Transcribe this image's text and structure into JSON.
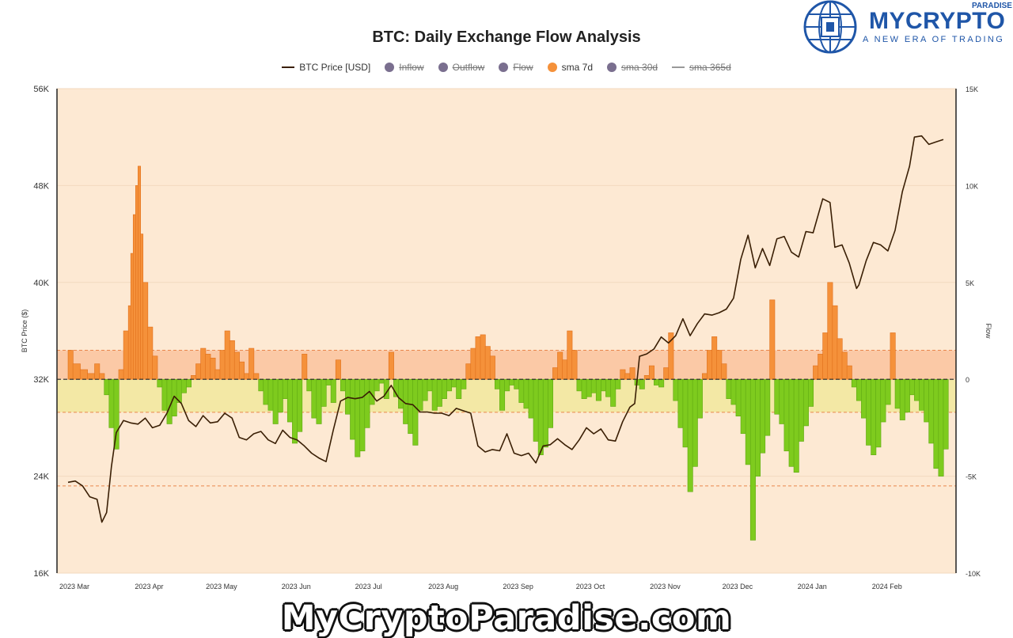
{
  "brand": {
    "name": "MYCRYPTO",
    "name_small": "PARADISE",
    "tagline": "A NEW ERA OF TRADING",
    "watermark": "MyCryptoParadise.com",
    "color": "#1f56a8"
  },
  "chart_data": {
    "type": "bar",
    "title": "BTC: Daily Exchange Flow Analysis",
    "ylabel_left": "BTC Price ($)",
    "ylabel_right": "Flow",
    "legend_placement": "top-center",
    "legend": [
      {
        "label": "BTC Price [USD]",
        "style": "line",
        "color": "#3a1f05",
        "visible": true
      },
      {
        "label": "Inflow",
        "style": "dot",
        "color": "#7a6f8f",
        "visible": false
      },
      {
        "label": "Outflow",
        "style": "dot",
        "color": "#7a6f8f",
        "visible": false
      },
      {
        "label": "Flow",
        "style": "dot",
        "color": "#7a6f8f",
        "visible": false
      },
      {
        "label": "sma 7d",
        "style": "dot",
        "color": "#f5913a",
        "visible": true
      },
      {
        "label": "sma 30d",
        "style": "dot",
        "color": "#7a6f8f",
        "visible": false
      },
      {
        "label": "sma 365d",
        "style": "line",
        "color": "#999999",
        "visible": false
      }
    ],
    "x_axis": {
      "start": "2023-03-01",
      "end": "2024-02-28",
      "tick_labels": [
        "2023 Mar",
        "2023 Apr",
        "2023 May",
        "2023 Jun",
        "2023 Jul",
        "2023 Aug",
        "2023 Sep",
        "2023 Oct",
        "2023 Nov",
        "2023 Dec",
        "2024 Jan",
        "2024 Feb"
      ]
    },
    "y_left": {
      "min": 16000,
      "max": 56000,
      "tick_labels": [
        "16K",
        "24K",
        "32K",
        "40K",
        "48K",
        "56K"
      ]
    },
    "y_right": {
      "min": -10000,
      "max": 15000,
      "tick_labels": [
        "-10K",
        "-5K",
        "0",
        "5K",
        "10K",
        "15K"
      ]
    },
    "bands": {
      "upper": 1500,
      "lower": -1700,
      "lower2": -5500
    },
    "colors": {
      "positive": "#f5913a",
      "negative": "#7ecb1e",
      "price": "#3a1f05",
      "background": "#fde9d3"
    },
    "flow_sma7d": [
      [
        "2023-03-01",
        1500
      ],
      [
        "2023-03-03",
        800
      ],
      [
        "2023-03-06",
        500
      ],
      [
        "2023-03-09",
        300
      ],
      [
        "2023-03-12",
        800
      ],
      [
        "2023-03-14",
        300
      ],
      [
        "2023-03-16",
        -800
      ],
      [
        "2023-03-18",
        -2500
      ],
      [
        "2023-03-20",
        -3600
      ],
      [
        "2023-03-22",
        500
      ],
      [
        "2023-03-24",
        2500
      ],
      [
        "2023-03-26",
        3800
      ],
      [
        "2023-03-27",
        6500
      ],
      [
        "2023-03-28",
        8500
      ],
      [
        "2023-03-29",
        10000
      ],
      [
        "2023-03-30",
        11000
      ],
      [
        "2023-03-31",
        7500
      ],
      [
        "2023-04-01",
        5000
      ],
      [
        "2023-04-03",
        2700
      ],
      [
        "2023-04-05",
        1200
      ],
      [
        "2023-04-07",
        -400
      ],
      [
        "2023-04-09",
        -1600
      ],
      [
        "2023-04-11",
        -2300
      ],
      [
        "2023-04-13",
        -1900
      ],
      [
        "2023-04-15",
        -1200
      ],
      [
        "2023-04-17",
        -700
      ],
      [
        "2023-04-19",
        -400
      ],
      [
        "2023-04-21",
        200
      ],
      [
        "2023-04-23",
        800
      ],
      [
        "2023-04-25",
        1600
      ],
      [
        "2023-04-27",
        1300
      ],
      [
        "2023-04-29",
        1100
      ],
      [
        "2023-05-01",
        500
      ],
      [
        "2023-05-03",
        1500
      ],
      [
        "2023-05-05",
        2500
      ],
      [
        "2023-05-07",
        2000
      ],
      [
        "2023-05-09",
        1400
      ],
      [
        "2023-05-11",
        900
      ],
      [
        "2023-05-13",
        300
      ],
      [
        "2023-05-15",
        1600
      ],
      [
        "2023-05-17",
        300
      ],
      [
        "2023-05-19",
        -600
      ],
      [
        "2023-05-21",
        -1300
      ],
      [
        "2023-05-23",
        -1600
      ],
      [
        "2023-05-25",
        -2300
      ],
      [
        "2023-05-27",
        -1700
      ],
      [
        "2023-05-29",
        -1000
      ],
      [
        "2023-05-31",
        -2200
      ],
      [
        "2023-06-02",
        -3300
      ],
      [
        "2023-06-04",
        -2700
      ],
      [
        "2023-06-06",
        1300
      ],
      [
        "2023-06-08",
        -600
      ],
      [
        "2023-06-10",
        -2000
      ],
      [
        "2023-06-12",
        -2300
      ],
      [
        "2023-06-14",
        -1400
      ],
      [
        "2023-06-16",
        -300
      ],
      [
        "2023-06-18",
        -1200
      ],
      [
        "2023-06-20",
        1000
      ],
      [
        "2023-06-22",
        -600
      ],
      [
        "2023-06-24",
        -1800
      ],
      [
        "2023-06-26",
        -3100
      ],
      [
        "2023-06-28",
        -4000
      ],
      [
        "2023-06-30",
        -3700
      ],
      [
        "2023-07-02",
        -2500
      ],
      [
        "2023-07-04",
        -1300
      ],
      [
        "2023-07-06",
        -600
      ],
      [
        "2023-07-08",
        -200
      ],
      [
        "2023-07-10",
        -1000
      ],
      [
        "2023-07-12",
        1400
      ],
      [
        "2023-07-14",
        -900
      ],
      [
        "2023-07-16",
        -1500
      ],
      [
        "2023-07-18",
        -2300
      ],
      [
        "2023-07-20",
        -2800
      ],
      [
        "2023-07-22",
        -3400
      ],
      [
        "2023-07-24",
        -1600
      ],
      [
        "2023-07-26",
        -1100
      ],
      [
        "2023-07-28",
        -600
      ],
      [
        "2023-07-30",
        -1600
      ],
      [
        "2023-08-01",
        -1400
      ],
      [
        "2023-08-03",
        -1000
      ],
      [
        "2023-08-05",
        -600
      ],
      [
        "2023-08-07",
        -400
      ],
      [
        "2023-08-09",
        -1000
      ],
      [
        "2023-08-11",
        -500
      ],
      [
        "2023-08-13",
        800
      ],
      [
        "2023-08-15",
        1600
      ],
      [
        "2023-08-17",
        2200
      ],
      [
        "2023-08-19",
        2300
      ],
      [
        "2023-08-21",
        1700
      ],
      [
        "2023-08-23",
        1200
      ],
      [
        "2023-08-25",
        -500
      ],
      [
        "2023-08-27",
        -1600
      ],
      [
        "2023-08-29",
        -600
      ],
      [
        "2023-08-31",
        -300
      ],
      [
        "2023-09-02",
        -500
      ],
      [
        "2023-09-04",
        -1200
      ],
      [
        "2023-09-06",
        -1500
      ],
      [
        "2023-09-08",
        -2000
      ],
      [
        "2023-09-10",
        -3200
      ],
      [
        "2023-09-12",
        -3900
      ],
      [
        "2023-09-14",
        -3500
      ],
      [
        "2023-09-16",
        -2500
      ],
      [
        "2023-09-18",
        600
      ],
      [
        "2023-09-20",
        1400
      ],
      [
        "2023-09-22",
        1000
      ],
      [
        "2023-09-24",
        2500
      ],
      [
        "2023-09-26",
        1500
      ],
      [
        "2023-09-28",
        -600
      ],
      [
        "2023-09-30",
        -1000
      ],
      [
        "2023-10-02",
        -900
      ],
      [
        "2023-10-04",
        -700
      ],
      [
        "2023-10-06",
        -1100
      ],
      [
        "2023-10-08",
        -600
      ],
      [
        "2023-10-10",
        -900
      ],
      [
        "2023-10-12",
        -1400
      ],
      [
        "2023-10-14",
        -500
      ],
      [
        "2023-10-16",
        500
      ],
      [
        "2023-10-18",
        300
      ],
      [
        "2023-10-20",
        600
      ],
      [
        "2023-10-22",
        -300
      ],
      [
        "2023-10-24",
        -500
      ],
      [
        "2023-10-26",
        200
      ],
      [
        "2023-10-28",
        700
      ],
      [
        "2023-10-30",
        -300
      ],
      [
        "2023-11-01",
        -400
      ],
      [
        "2023-11-03",
        600
      ],
      [
        "2023-11-05",
        2400
      ],
      [
        "2023-11-07",
        -1100
      ],
      [
        "2023-11-09",
        -2500
      ],
      [
        "2023-11-11",
        -3500
      ],
      [
        "2023-11-13",
        -5800
      ],
      [
        "2023-11-15",
        -4500
      ],
      [
        "2023-11-17",
        -2000
      ],
      [
        "2023-11-19",
        300
      ],
      [
        "2023-11-21",
        1500
      ],
      [
        "2023-11-23",
        2200
      ],
      [
        "2023-11-25",
        1500
      ],
      [
        "2023-11-27",
        800
      ],
      [
        "2023-11-29",
        -1000
      ],
      [
        "2023-12-01",
        -1300
      ],
      [
        "2023-12-03",
        -1900
      ],
      [
        "2023-12-05",
        -2800
      ],
      [
        "2023-12-07",
        -4400
      ],
      [
        "2023-12-09",
        -8300
      ],
      [
        "2023-12-11",
        -5000
      ],
      [
        "2023-12-13",
        -3800
      ],
      [
        "2023-12-15",
        -2900
      ],
      [
        "2023-12-17",
        4100
      ],
      [
        "2023-12-19",
        -1800
      ],
      [
        "2023-12-21",
        -2300
      ],
      [
        "2023-12-23",
        -3700
      ],
      [
        "2023-12-25",
        -4500
      ],
      [
        "2023-12-27",
        -4800
      ],
      [
        "2023-12-29",
        -3200
      ],
      [
        "2023-12-31",
        -2400
      ],
      [
        "2024-01-02",
        -1400
      ],
      [
        "2024-01-04",
        700
      ],
      [
        "2024-01-06",
        1300
      ],
      [
        "2024-01-08",
        2400
      ],
      [
        "2024-01-10",
        5000
      ],
      [
        "2024-01-12",
        3800
      ],
      [
        "2024-01-14",
        2100
      ],
      [
        "2024-01-16",
        1400
      ],
      [
        "2024-01-18",
        700
      ],
      [
        "2024-01-20",
        -400
      ],
      [
        "2024-01-22",
        -1100
      ],
      [
        "2024-01-24",
        -2000
      ],
      [
        "2024-01-26",
        -3400
      ],
      [
        "2024-01-28",
        -3900
      ],
      [
        "2024-01-30",
        -3500
      ],
      [
        "2024-02-01",
        -2200
      ],
      [
        "2024-02-03",
        -1300
      ],
      [
        "2024-02-05",
        2400
      ],
      [
        "2024-02-07",
        -1500
      ],
      [
        "2024-02-09",
        -2100
      ],
      [
        "2024-02-11",
        -1700
      ],
      [
        "2024-02-13",
        -800
      ],
      [
        "2024-02-15",
        -1100
      ],
      [
        "2024-02-17",
        -1600
      ],
      [
        "2024-02-19",
        -2200
      ],
      [
        "2024-02-21",
        -3300
      ],
      [
        "2024-02-23",
        -4600
      ],
      [
        "2024-02-25",
        -5000
      ],
      [
        "2024-02-27",
        -3600
      ]
    ],
    "price": [
      [
        "2023-03-01",
        23500
      ],
      [
        "2023-03-04",
        23600
      ],
      [
        "2023-03-07",
        23200
      ],
      [
        "2023-03-10",
        22300
      ],
      [
        "2023-03-13",
        22100
      ],
      [
        "2023-03-15",
        20200
      ],
      [
        "2023-03-17",
        21000
      ],
      [
        "2023-03-19",
        24800
      ],
      [
        "2023-03-21",
        27600
      ],
      [
        "2023-03-24",
        28600
      ],
      [
        "2023-03-27",
        28400
      ],
      [
        "2023-03-30",
        28300
      ],
      [
        "2023-04-02",
        28800
      ],
      [
        "2023-04-05",
        28000
      ],
      [
        "2023-04-08",
        28200
      ],
      [
        "2023-04-11",
        29200
      ],
      [
        "2023-04-14",
        30600
      ],
      [
        "2023-04-17",
        30000
      ],
      [
        "2023-04-20",
        28600
      ],
      [
        "2023-04-23",
        28100
      ],
      [
        "2023-04-26",
        29000
      ],
      [
        "2023-04-29",
        28400
      ],
      [
        "2023-05-02",
        28500
      ],
      [
        "2023-05-05",
        29200
      ],
      [
        "2023-05-08",
        28800
      ],
      [
        "2023-05-11",
        27200
      ],
      [
        "2023-05-14",
        27000
      ],
      [
        "2023-05-17",
        27500
      ],
      [
        "2023-05-20",
        27700
      ],
      [
        "2023-05-23",
        27000
      ],
      [
        "2023-05-26",
        26700
      ],
      [
        "2023-05-29",
        27800
      ],
      [
        "2023-06-01",
        27200
      ],
      [
        "2023-06-04",
        27000
      ],
      [
        "2023-06-07",
        26500
      ],
      [
        "2023-06-10",
        25900
      ],
      [
        "2023-06-13",
        25500
      ],
      [
        "2023-06-16",
        25200
      ],
      [
        "2023-06-19",
        27800
      ],
      [
        "2023-06-22",
        30200
      ],
      [
        "2023-06-25",
        30500
      ],
      [
        "2023-06-28",
        30400
      ],
      [
        "2023-07-01",
        30500
      ],
      [
        "2023-07-04",
        31000
      ],
      [
        "2023-07-07",
        30200
      ],
      [
        "2023-07-10",
        30600
      ],
      [
        "2023-07-13",
        31500
      ],
      [
        "2023-07-16",
        30500
      ],
      [
        "2023-07-19",
        30000
      ],
      [
        "2023-07-22",
        29900
      ],
      [
        "2023-07-25",
        29300
      ],
      [
        "2023-07-28",
        29300
      ],
      [
        "2023-07-31",
        29200
      ],
      [
        "2023-08-03",
        29200
      ],
      [
        "2023-08-06",
        29000
      ],
      [
        "2023-08-09",
        29600
      ],
      [
        "2023-08-12",
        29400
      ],
      [
        "2023-08-15",
        29200
      ],
      [
        "2023-08-18",
        26500
      ],
      [
        "2023-08-21",
        26000
      ],
      [
        "2023-08-24",
        26200
      ],
      [
        "2023-08-27",
        26100
      ],
      [
        "2023-08-30",
        27500
      ],
      [
        "2023-09-02",
        25900
      ],
      [
        "2023-09-05",
        25700
      ],
      [
        "2023-09-08",
        25900
      ],
      [
        "2023-09-11",
        25100
      ],
      [
        "2023-09-14",
        26500
      ],
      [
        "2023-09-17",
        26600
      ],
      [
        "2023-09-20",
        27100
      ],
      [
        "2023-09-23",
        26600
      ],
      [
        "2023-09-26",
        26200
      ],
      [
        "2023-09-29",
        27000
      ],
      [
        "2023-10-02",
        28000
      ],
      [
        "2023-10-05",
        27500
      ],
      [
        "2023-10-08",
        27900
      ],
      [
        "2023-10-11",
        27000
      ],
      [
        "2023-10-14",
        26900
      ],
      [
        "2023-10-17",
        28500
      ],
      [
        "2023-10-20",
        29700
      ],
      [
        "2023-10-22",
        30000
      ],
      [
        "2023-10-24",
        33900
      ],
      [
        "2023-10-27",
        34100
      ],
      [
        "2023-10-30",
        34500
      ],
      [
        "2023-11-02",
        35500
      ],
      [
        "2023-11-05",
        35000
      ],
      [
        "2023-11-08",
        35600
      ],
      [
        "2023-11-11",
        37000
      ],
      [
        "2023-11-14",
        35600
      ],
      [
        "2023-11-17",
        36600
      ],
      [
        "2023-11-20",
        37400
      ],
      [
        "2023-11-23",
        37300
      ],
      [
        "2023-11-26",
        37500
      ],
      [
        "2023-11-29",
        37800
      ],
      [
        "2023-12-02",
        38700
      ],
      [
        "2023-12-05",
        41900
      ],
      [
        "2023-12-08",
        43900
      ],
      [
        "2023-12-11",
        41200
      ],
      [
        "2023-12-14",
        42800
      ],
      [
        "2023-12-17",
        41400
      ],
      [
        "2023-12-20",
        43600
      ],
      [
        "2023-12-23",
        43800
      ],
      [
        "2023-12-26",
        42500
      ],
      [
        "2023-12-29",
        42100
      ],
      [
        "2024-01-01",
        44200
      ],
      [
        "2024-01-04",
        44100
      ],
      [
        "2024-01-08",
        46900
      ],
      [
        "2024-01-11",
        46600
      ],
      [
        "2024-01-13",
        42900
      ],
      [
        "2024-01-16",
        43100
      ],
      [
        "2024-01-19",
        41600
      ],
      [
        "2024-01-22",
        39500
      ],
      [
        "2024-01-23",
        39800
      ],
      [
        "2024-01-26",
        41800
      ],
      [
        "2024-01-29",
        43300
      ],
      [
        "2024-02-01",
        43100
      ],
      [
        "2024-02-04",
        42600
      ],
      [
        "2024-02-07",
        44300
      ],
      [
        "2024-02-10",
        47500
      ],
      [
        "2024-02-13",
        49600
      ],
      [
        "2024-02-15",
        52000
      ],
      [
        "2024-02-18",
        52100
      ],
      [
        "2024-02-21",
        51400
      ],
      [
        "2024-02-24",
        51600
      ],
      [
        "2024-02-27",
        51800
      ]
    ]
  }
}
